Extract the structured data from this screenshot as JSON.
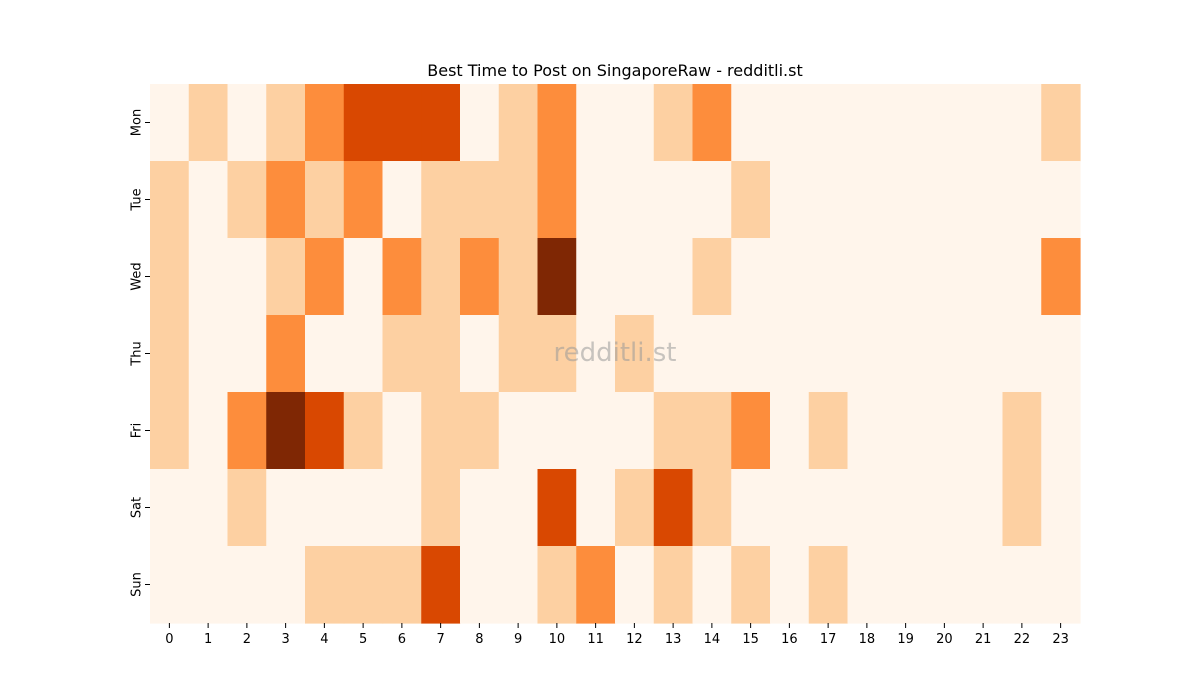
{
  "chart_data": {
    "type": "heatmap",
    "title": "Best Time to Post on SingaporeRaw - redditli.st",
    "watermark": "redditli.st",
    "x": [
      "0",
      "1",
      "2",
      "3",
      "4",
      "5",
      "6",
      "7",
      "8",
      "9",
      "10",
      "11",
      "12",
      "13",
      "14",
      "15",
      "16",
      "17",
      "18",
      "19",
      "20",
      "21",
      "22",
      "23"
    ],
    "y": [
      "Mon",
      "Tue",
      "Wed",
      "Thu",
      "Fri",
      "Sat",
      "Sun"
    ],
    "values": [
      [
        0,
        1,
        0,
        1,
        2,
        3,
        3,
        3,
        0,
        1,
        2,
        0,
        0,
        1,
        2,
        0,
        0,
        0,
        0,
        0,
        0,
        0,
        0,
        1
      ],
      [
        1,
        0,
        1,
        2,
        1,
        2,
        0,
        1,
        1,
        1,
        2,
        0,
        0,
        0,
        0,
        1,
        0,
        0,
        0,
        0,
        0,
        0,
        0,
        0
      ],
      [
        1,
        0,
        0,
        1,
        2,
        0,
        2,
        1,
        2,
        1,
        4,
        0,
        0,
        0,
        1,
        0,
        0,
        0,
        0,
        0,
        0,
        0,
        0,
        2
      ],
      [
        1,
        0,
        0,
        2,
        0,
        0,
        1,
        1,
        0,
        1,
        1,
        0,
        1,
        0,
        0,
        0,
        0,
        0,
        0,
        0,
        0,
        0,
        0,
        0
      ],
      [
        1,
        0,
        2,
        4,
        3,
        1,
        0,
        1,
        1,
        0,
        0,
        0,
        0,
        1,
        1,
        2,
        0,
        1,
        0,
        0,
        0,
        0,
        1,
        0
      ],
      [
        0,
        0,
        1,
        0,
        0,
        0,
        0,
        1,
        0,
        0,
        3,
        0,
        1,
        3,
        1,
        0,
        0,
        0,
        0,
        0,
        0,
        0,
        1,
        0
      ],
      [
        0,
        0,
        0,
        0,
        1,
        1,
        1,
        3,
        0,
        0,
        1,
        2,
        0,
        1,
        0,
        1,
        0,
        1,
        0,
        0,
        0,
        0,
        0,
        0
      ]
    ],
    "value_range": [
      0,
      4
    ],
    "colormap": "Oranges",
    "colors": [
      "#fff5eb",
      "#fdd0a2",
      "#fd8d3c",
      "#d94801",
      "#7f2704"
    ],
    "grid": false,
    "legend": "none"
  }
}
